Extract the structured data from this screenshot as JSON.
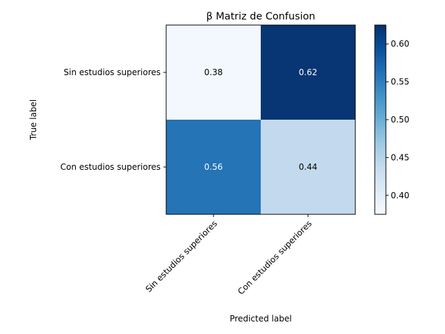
{
  "chart_data": {
    "type": "heatmap",
    "title": "β Matriz de Confusion",
    "xlabel": "Predicted label",
    "ylabel": "True label",
    "x_categories": [
      "Sin estudios superiores",
      "Con estudios superiores"
    ],
    "y_categories": [
      "Sin estudios superiores",
      "Con estudios superiores"
    ],
    "values": [
      [
        0.38,
        0.62
      ],
      [
        0.56,
        0.44
      ]
    ],
    "value_labels": [
      [
        "0.38",
        "0.62"
      ],
      [
        "0.56",
        "0.44"
      ]
    ],
    "colormap": "Blues",
    "colorbar": {
      "range": [
        0.375,
        0.625
      ],
      "ticks": [
        0.4,
        0.45,
        0.5,
        0.55,
        0.6
      ],
      "tick_labels": [
        "0.40",
        "0.45",
        "0.50",
        "0.55",
        "0.60"
      ]
    },
    "grid": false
  }
}
